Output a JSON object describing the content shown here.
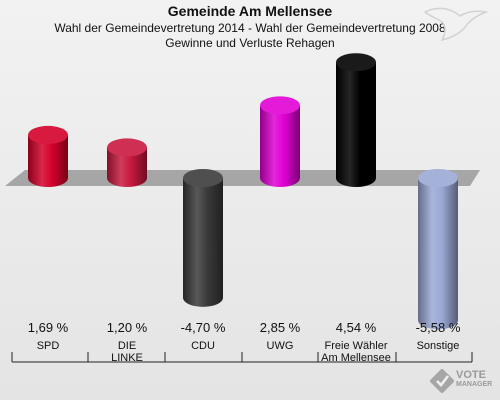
{
  "header": {
    "title": "Gemeinde Am Mellensee",
    "subtitle_1": "Wahl der Gemeindevertretung 2014 - Wahl der Gemeindevertretung 2008",
    "subtitle_2": "Gewinne und Verluste Rehagen"
  },
  "logo": {
    "word1": "VOTE",
    "word2": "MANAGER",
    "icon": "vote-check-icon"
  },
  "chart_data": {
    "type": "bar",
    "categories": [
      "SPD",
      "DIE LINKE",
      "CDU",
      "UWG",
      "Freie Wähler Am Mellensee",
      "Sonstige"
    ],
    "category_labels": [
      [
        "SPD"
      ],
      [
        "DIE",
        "LINKE"
      ],
      [
        "CDU"
      ],
      [
        "UWG"
      ],
      [
        "Freie Wähler",
        "Am Mellensee"
      ],
      [
        "Sonstige"
      ]
    ],
    "values": [
      1.69,
      1.2,
      -4.7,
      2.85,
      4.54,
      -5.58
    ],
    "value_labels": [
      "1,69 %",
      "1,20 %",
      "-4,70 %",
      "2,85 %",
      "4,54 %",
      "-5,58 %"
    ],
    "colors": [
      "#d4002a",
      "#c8183f",
      "#3b3b3b",
      "#e000d4",
      "#000000",
      "#9aa8d4"
    ],
    "ylim": [
      -5.58,
      4.54
    ],
    "grid": false,
    "legend": "none"
  }
}
